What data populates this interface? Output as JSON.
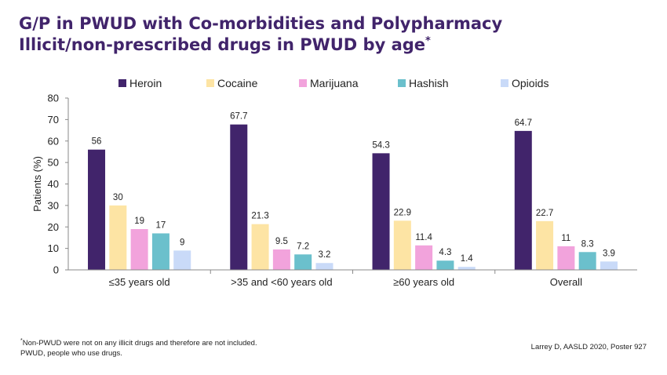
{
  "header": {
    "title_line1": "G/P in PWUD with Co-morbidities and Polypharmacy",
    "title_line2": "Illicit/non-prescribed drugs in PWUD by age",
    "title_marker": "*"
  },
  "chart_data": {
    "type": "bar",
    "title": "",
    "xlabel": "",
    "ylabel": "Patients (%)",
    "ylim": [
      0,
      80
    ],
    "yticks": [
      0,
      10,
      20,
      30,
      40,
      50,
      60,
      70,
      80
    ],
    "grid": false,
    "legend_position": "top",
    "categories": [
      "≤35 years old",
      ">35 and <60 years old",
      "≥60 years old",
      "Overall"
    ],
    "series": [
      {
        "name": "Heroin",
        "color": "#41246b",
        "values": [
          56,
          67.7,
          54.3,
          64.7
        ]
      },
      {
        "name": "Cocaine",
        "color": "#fde4a4",
        "values": [
          30,
          21.3,
          22.9,
          22.7
        ]
      },
      {
        "name": "Marijuana",
        "color": "#f2a3dc",
        "values": [
          19,
          9.5,
          11.4,
          11
        ]
      },
      {
        "name": "Hashish",
        "color": "#6bc0cc",
        "values": [
          17,
          7.2,
          4.3,
          8.3
        ]
      },
      {
        "name": "Opioids",
        "color": "#c9daf8",
        "values": [
          9,
          3.2,
          1.4,
          3.9
        ]
      }
    ]
  },
  "footer": {
    "footnote_marker": "*",
    "footnote_line1": "Non-PWUD were not on any illicit drugs and therefore are not included.",
    "footnote_line2": "PWUD, people who use drugs.",
    "source": "Larrey D, AASLD 2020, Poster 927"
  }
}
